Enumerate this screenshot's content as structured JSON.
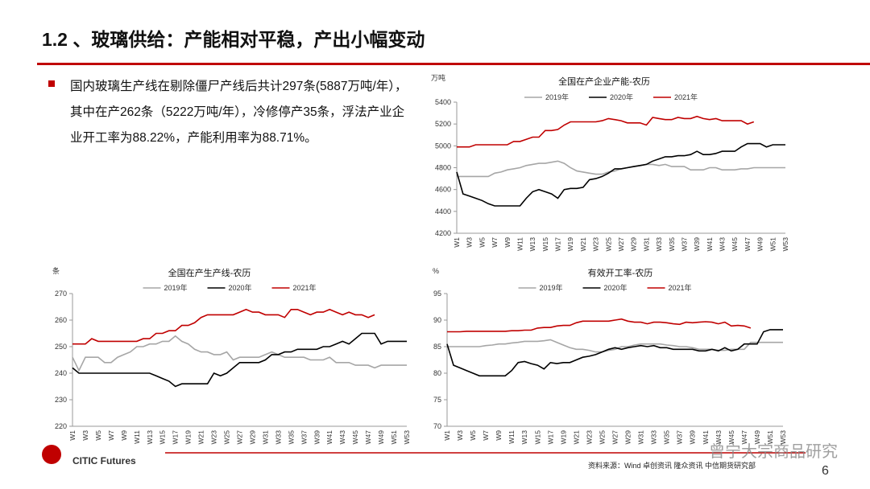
{
  "header": {
    "title": "1.2 、玻璃供给：产能相对平稳，产出小幅变动"
  },
  "bullet": {
    "text": "国内玻璃生产线在剔除僵尸产线后共计297条(5887万吨/年），其中在产262条（5222万吨/年），冷修停产35条，浮法产业企业开工率为88.22%，产能利用率为88.71%。"
  },
  "chart_data": [
    {
      "type": "line",
      "title": "全国在产企业产能-农历",
      "y_unit": "万吨",
      "legend": "top",
      "categories": [
        "W1",
        null,
        "W3",
        null,
        "W5",
        null,
        "W7",
        null,
        "W9",
        null,
        "W11",
        null,
        "W13",
        null,
        "W15",
        null,
        "W17",
        null,
        "W19",
        null,
        "W21",
        null,
        "W23",
        null,
        "W25",
        null,
        "W27",
        null,
        "W29",
        null,
        "W31",
        null,
        "W33",
        null,
        "W35",
        null,
        "W37",
        null,
        "W39",
        null,
        "W41",
        null,
        "W43",
        null,
        "W45",
        null,
        "W47",
        null,
        "W49",
        null,
        "W51",
        null,
        "W53"
      ],
      "ylim": [
        4200,
        5400
      ],
      "yticks": [
        4200,
        4400,
        4600,
        4800,
        5000,
        5200,
        5400
      ],
      "series": [
        {
          "name": "2019年",
          "color": "#a6a6a6",
          "values": [
            4720,
            4720,
            4720,
            4720,
            4720,
            4720,
            4750,
            4760,
            4780,
            4790,
            4800,
            4820,
            4830,
            4840,
            4840,
            4850,
            4860,
            4840,
            4800,
            4770,
            4760,
            4750,
            4740,
            4740,
            4760,
            4770,
            4790,
            4800,
            4810,
            4820,
            4830,
            4830,
            4820,
            4830,
            4810,
            4810,
            4810,
            4780,
            4780,
            4780,
            4800,
            4800,
            4780,
            4780,
            4780,
            4790,
            4790,
            4800,
            4800,
            4800,
            4800,
            4800,
            4800
          ]
        },
        {
          "name": "2020年",
          "color": "#000000",
          "values": [
            4760,
            4560,
            4540,
            4520,
            4500,
            4470,
            4450,
            4450,
            4450,
            4450,
            4450,
            4520,
            4580,
            4600,
            4580,
            4560,
            4520,
            4600,
            4610,
            4610,
            4620,
            4690,
            4700,
            4720,
            4750,
            4790,
            4790,
            4800,
            4810,
            4820,
            4830,
            4860,
            4880,
            4900,
            4900,
            4910,
            4910,
            4920,
            4950,
            4920,
            4920,
            4930,
            4950,
            4950,
            4950,
            4990,
            5020,
            5020,
            5020,
            4990,
            5010,
            5010,
            5010
          ]
        },
        {
          "name": "2021年",
          "color": "#c00000",
          "values": [
            4990,
            4990,
            4990,
            5010,
            5010,
            5010,
            5010,
            5010,
            5010,
            5040,
            5040,
            5060,
            5080,
            5080,
            5140,
            5140,
            5150,
            5190,
            5220,
            5220,
            5220,
            5220,
            5220,
            5230,
            5250,
            5240,
            5230,
            5210,
            5210,
            5210,
            5190,
            5260,
            5250,
            5240,
            5240,
            5260,
            5250,
            5250,
            5270,
            5250,
            5240,
            5250,
            5230,
            5230,
            5230,
            5230,
            5200,
            5220,
            null,
            null,
            null,
            null,
            null
          ]
        }
      ]
    },
    {
      "type": "line",
      "title": "全国在产生产线-农历",
      "y_unit": "条",
      "legend": "top",
      "categories": [
        "W1",
        null,
        "W3",
        null,
        "W5",
        null,
        "W7",
        null,
        "W9",
        null,
        "W11",
        null,
        "W13",
        null,
        "W15",
        null,
        "W17",
        null,
        "W19",
        null,
        "W21",
        null,
        "W23",
        null,
        "W25",
        null,
        "W27",
        null,
        "W29",
        null,
        "W31",
        null,
        "W33",
        null,
        "W35",
        null,
        "W37",
        null,
        "W39",
        null,
        "W41",
        null,
        "W43",
        null,
        "W45",
        null,
        "W47",
        null,
        "W49",
        null,
        "W51",
        null,
        "W53"
      ],
      "ylim": [
        220,
        270
      ],
      "yticks": [
        220,
        230,
        240,
        250,
        260,
        270
      ],
      "series": [
        {
          "name": "2019年",
          "color": "#a6a6a6",
          "values": [
            246,
            241,
            246,
            246,
            246,
            244,
            244,
            246,
            247,
            248,
            250,
            250,
            251,
            251,
            252,
            252,
            254,
            252,
            251,
            249,
            248,
            248,
            247,
            247,
            248,
            245,
            246,
            246,
            246,
            246,
            247,
            248,
            247,
            246,
            246,
            246,
            246,
            245,
            245,
            245,
            246,
            244,
            244,
            244,
            243,
            243,
            243,
            242,
            243,
            243,
            243,
            243,
            243
          ]
        },
        {
          "name": "2020年",
          "color": "#000000",
          "values": [
            242,
            240,
            240,
            240,
            240,
            240,
            240,
            240,
            240,
            240,
            240,
            240,
            240,
            239,
            238,
            237,
            235,
            236,
            236,
            236,
            236,
            236,
            240,
            239,
            240,
            242,
            244,
            244,
            244,
            244,
            245,
            247,
            247,
            248,
            248,
            249,
            249,
            249,
            249,
            250,
            250,
            251,
            252,
            251,
            253,
            255,
            255,
            255,
            251,
            252,
            252,
            252,
            252
          ]
        },
        {
          "name": "2021年",
          "color": "#c00000",
          "values": [
            251,
            251,
            251,
            253,
            252,
            252,
            252,
            252,
            252,
            252,
            252,
            253,
            253,
            255,
            255,
            256,
            256,
            258,
            258,
            259,
            261,
            262,
            262,
            262,
            262,
            262,
            263,
            264,
            263,
            263,
            262,
            262,
            262,
            261,
            264,
            264,
            263,
            262,
            263,
            263,
            264,
            263,
            262,
            263,
            262,
            262,
            261,
            262,
            null,
            null,
            null,
            null,
            null
          ]
        }
      ]
    },
    {
      "type": "line",
      "title": "有效开工率-农历",
      "y_unit": "%",
      "legend": "top",
      "categories": [
        "W1",
        null,
        "W3",
        null,
        "W5",
        null,
        "W7",
        null,
        "W9",
        null,
        "W11",
        null,
        "W13",
        null,
        "W15",
        null,
        "W17",
        null,
        "W19",
        null,
        "W21",
        null,
        "W23",
        null,
        "W25",
        null,
        "W27",
        null,
        "W29",
        null,
        "W31",
        null,
        "W33",
        null,
        "W35",
        null,
        "W37",
        null,
        "W39",
        null,
        "W41",
        null,
        "W43",
        null,
        "W45",
        null,
        "W47",
        null,
        "W49",
        null,
        "W51",
        null,
        "W53"
      ],
      "ylim": [
        70,
        95
      ],
      "yticks": [
        70,
        75,
        80,
        85,
        90,
        95
      ],
      "series": [
        {
          "name": "2019年",
          "color": "#a6a6a6",
          "values": [
            85,
            85,
            85,
            85,
            85,
            85,
            85.2,
            85.3,
            85.5,
            85.5,
            85.7,
            85.8,
            86,
            86,
            86,
            86.1,
            86.3,
            85.8,
            85.3,
            84.8,
            84.5,
            84.5,
            84.3,
            84,
            84,
            84.3,
            84.5,
            85,
            85,
            85.3,
            85.5,
            85.5,
            85.5,
            85.5,
            85.3,
            85.2,
            85,
            85,
            84.8,
            84.5,
            84.5,
            84.5,
            84.3,
            84.3,
            84.5,
            84.5,
            84.5,
            85.8,
            85.8,
            85.8,
            85.8,
            85.8,
            85.8
          ]
        },
        {
          "name": "2020年",
          "color": "#000000",
          "values": [
            85.5,
            81.5,
            81,
            80.5,
            80,
            79.5,
            79.5,
            79.5,
            79.5,
            79.5,
            80.5,
            82,
            82.2,
            81.8,
            81.5,
            80.8,
            82,
            81.8,
            82,
            82,
            82.5,
            83,
            83.2,
            83.5,
            84,
            84.5,
            84.8,
            84.5,
            84.8,
            85,
            85.2,
            85,
            85.2,
            84.8,
            84.8,
            84.5,
            84.5,
            84.5,
            84.5,
            84.2,
            84.2,
            84.5,
            84.2,
            84.8,
            84.2,
            84.5,
            85.5,
            85.5,
            85.5,
            87.8,
            88.2,
            88.2,
            88.2
          ]
        },
        {
          "name": "2021年",
          "color": "#c00000",
          "values": [
            87.8,
            87.8,
            87.8,
            87.9,
            87.9,
            87.9,
            87.9,
            87.9,
            87.9,
            87.9,
            88,
            88,
            88.1,
            88.1,
            88.5,
            88.6,
            88.6,
            88.9,
            89,
            89,
            89.5,
            89.8,
            89.8,
            89.8,
            89.8,
            89.8,
            90,
            90.2,
            89.8,
            89.6,
            89.6,
            89.3,
            89.6,
            89.6,
            89.5,
            89.3,
            89.2,
            89.6,
            89.5,
            89.6,
            89.7,
            89.6,
            89.3,
            89.6,
            88.9,
            89,
            88.9,
            88.5,
            null,
            null,
            null,
            null,
            null
          ]
        }
      ]
    }
  ],
  "footer": {
    "source": "资料来源：Wind 卓创资讯 隆众资讯 中信期货研究部",
    "page": "6",
    "logo": "CITIC Futures",
    "watermark": "曾宁大宗商品研究"
  }
}
